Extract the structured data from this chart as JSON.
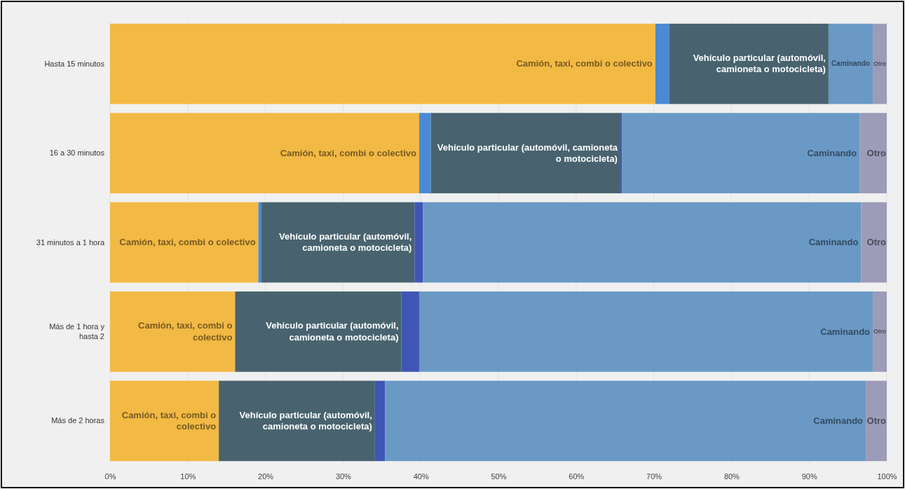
{
  "chart_data": {
    "type": "bar",
    "orientation": "horizontal",
    "stacked": true,
    "categories": [
      "Hasta 15 minutos",
      "16 a 30 minutos",
      "31 minutos a 1 hora",
      "Más de 1 hora y hasta 2",
      "Más de 2 horas"
    ],
    "series": [
      {
        "name": "Camión, taxi, combi o colectivo",
        "color": "#f2b944",
        "values": [
          70.2,
          39.8,
          19.1,
          16.1,
          14.0
        ]
      },
      {
        "color": "#4a8ad4",
        "values": [
          1.8,
          1.5,
          0.4,
          0,
          0
        ]
      },
      {
        "name": "Vehículo particular (automóvil, camioneta o motocicleta)",
        "color": "#48636f",
        "values": [
          20.5,
          24.4,
          19.7,
          21.4,
          20.1
        ]
      },
      {
        "color": "#3f56b5",
        "values": [
          0,
          0.2,
          1.1,
          2.3,
          1.3
        ]
      },
      {
        "name": "Caminando",
        "color": "#6a99c6",
        "values": [
          5.7,
          30.6,
          56.4,
          58.4,
          61.9
        ]
      },
      {
        "name": "Otro",
        "color": "#9c9cb8",
        "values": [
          1.8,
          3.5,
          3.3,
          1.8,
          2.7
        ]
      }
    ],
    "xlim": [
      0,
      100
    ],
    "xticks": [
      {
        "value": 0,
        "label": "0%"
      },
      {
        "value": 10,
        "label": "10%"
      },
      {
        "value": 20,
        "label": "20%"
      },
      {
        "value": 30,
        "label": "30%"
      },
      {
        "value": 40,
        "label": "40%"
      },
      {
        "value": 50,
        "label": "50%"
      },
      {
        "value": 60,
        "label": "60%"
      },
      {
        "value": 70,
        "label": "70%"
      },
      {
        "value": 80,
        "label": "80%"
      },
      {
        "value": 90,
        "label": "90%"
      },
      {
        "value": 100,
        "label": "100%"
      }
    ],
    "grid": "x"
  }
}
